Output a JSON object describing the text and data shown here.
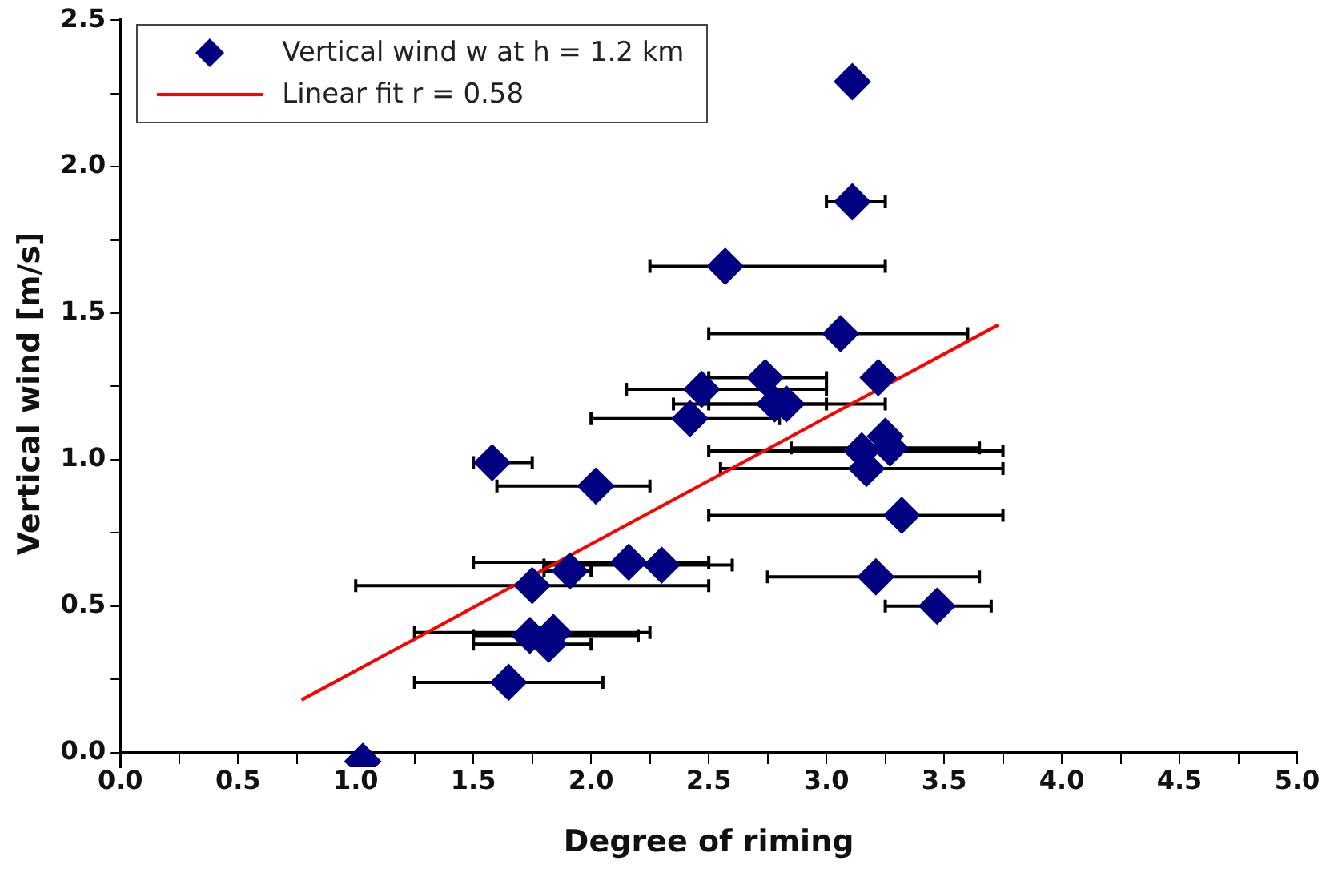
{
  "chart_data": {
    "type": "scatter",
    "xlabel": "Degree of riming",
    "ylabel": "Vertical wind [m/s]",
    "xlim": [
      0,
      5
    ],
    "ylim": [
      -0.05,
      2.5
    ],
    "xticks": [
      {
        "value": 0,
        "label": "0.0"
      },
      {
        "value": 0.25,
        "label": null
      },
      {
        "value": 0.5,
        "label": "0.5"
      },
      {
        "value": 0.75,
        "label": null
      },
      {
        "value": 1,
        "label": "1.0"
      },
      {
        "value": 1.25,
        "label": null
      },
      {
        "value": 1.5,
        "label": "1.5"
      },
      {
        "value": 1.75,
        "label": null
      },
      {
        "value": 2,
        "label": "2.0"
      },
      {
        "value": 2.25,
        "label": null
      },
      {
        "value": 2.5,
        "label": "2.5"
      },
      {
        "value": 2.75,
        "label": null
      },
      {
        "value": 3,
        "label": "3.0"
      },
      {
        "value": 3.25,
        "label": null
      },
      {
        "value": 3.5,
        "label": "3.5"
      },
      {
        "value": 3.75,
        "label": null
      },
      {
        "value": 4,
        "label": "4.0"
      },
      {
        "value": 4.25,
        "label": null
      },
      {
        "value": 4.5,
        "label": "4.5"
      },
      {
        "value": 4.75,
        "label": null
      },
      {
        "value": 5,
        "label": "5.0"
      }
    ],
    "yticks": [
      {
        "value": 0,
        "label": "0.0"
      },
      {
        "value": 0.25,
        "label": null
      },
      {
        "value": 0.5,
        "label": "0.5"
      },
      {
        "value": 0.75,
        "label": null
      },
      {
        "value": 1,
        "label": "1.0"
      },
      {
        "value": 1.25,
        "label": null
      },
      {
        "value": 1.5,
        "label": "1.5"
      },
      {
        "value": 1.75,
        "label": null
      },
      {
        "value": 2,
        "label": "2.0"
      },
      {
        "value": 2.25,
        "label": null
      },
      {
        "value": 2.5,
        "label": "2.5"
      }
    ],
    "grid": false,
    "legend": "top left",
    "series": [
      {
        "name": "Vertical wind w at h = 1.2 km",
        "color": "#000080",
        "marker": "diamond",
        "x": [
          3.11,
          3.11,
          2.57,
          3.06,
          2.74,
          3.22,
          2.47,
          2.78,
          2.83,
          2.42,
          3.25,
          3.15,
          3.27,
          3.17,
          1.58,
          2.02,
          3.32,
          2.16,
          2.3,
          1.91,
          1.75,
          3.21,
          3.47,
          1.74,
          1.84,
          1.82,
          1.65,
          1.03
        ],
        "values": [
          2.29,
          1.88,
          1.66,
          1.43,
          1.28,
          1.28,
          1.24,
          1.19,
          1.19,
          1.14,
          1.08,
          1.03,
          1.04,
          0.97,
          0.99,
          0.91,
          0.81,
          0.65,
          0.64,
          0.62,
          0.57,
          0.6,
          0.5,
          0.4,
          0.41,
          0.37,
          0.24,
          -0.03
        ],
        "xerrors": [
          null,
          [
            3.0,
            3.25
          ],
          [
            2.25,
            3.25
          ],
          [
            2.5,
            3.6
          ],
          [
            2.5,
            3.0
          ],
          null,
          [
            2.15,
            3.0
          ],
          [
            2.35,
            3.25
          ],
          [
            2.5,
            3.0
          ],
          [
            2.0,
            2.8
          ],
          null,
          [
            2.5,
            3.75
          ],
          [
            2.85,
            3.65
          ],
          [
            2.55,
            3.75
          ],
          [
            1.5,
            1.75
          ],
          [
            1.6,
            2.25
          ],
          [
            2.5,
            3.75
          ],
          [
            1.5,
            2.5
          ],
          [
            1.8,
            2.6
          ],
          [
            1.8,
            2.0
          ],
          [
            1.0,
            2.5
          ],
          [
            2.75,
            3.65
          ],
          [
            3.25,
            3.7
          ],
          [
            1.5,
            2.2
          ],
          [
            1.25,
            2.25
          ],
          [
            1.5,
            2.0
          ],
          [
            1.25,
            2.05
          ],
          null
        ]
      },
      {
        "name": "Linear fit r = 0.58",
        "type": "line",
        "color": "#ff0000",
        "marker": "none",
        "line_style": "solid",
        "x": [
          0.77,
          3.73
        ],
        "values": [
          0.18,
          1.46
        ]
      }
    ]
  }
}
